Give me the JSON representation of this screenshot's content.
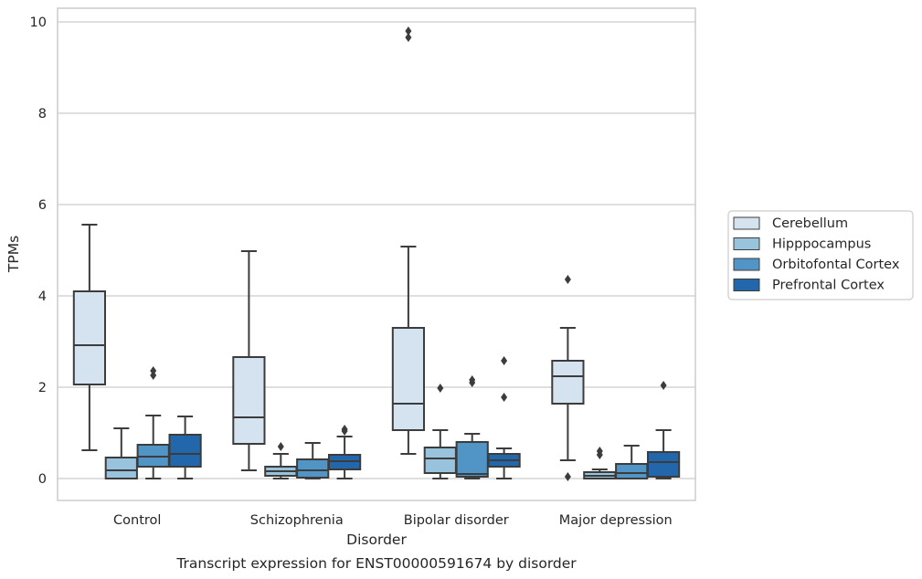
{
  "chart_data": {
    "type": "box",
    "title": "",
    "caption": "Transcript expression for ENST00000591674 by disorder",
    "xlabel": "Disorder",
    "ylabel": "TPMs",
    "ylim": [
      -0.47,
      10.3
    ],
    "yticks": [
      0,
      2,
      4,
      6,
      8,
      10
    ],
    "grid": "horizontal",
    "legend_position": "right",
    "categories": [
      "Control",
      "Schizophrenia",
      "Bipolar disorder",
      "Major depression"
    ],
    "series": [
      {
        "name": "Cerebellum",
        "color": "#d5e3f1",
        "boxes": [
          {
            "whisker_low": 0.62,
            "q1": 2.06,
            "median": 2.92,
            "q3": 4.1,
            "whisker_high": 5.56,
            "outliers": []
          },
          {
            "whisker_low": 0.18,
            "q1": 0.76,
            "median": 1.34,
            "q3": 2.66,
            "whisker_high": 4.98,
            "outliers": []
          },
          {
            "whisker_low": 0.54,
            "q1": 1.06,
            "median": 1.64,
            "q3": 3.3,
            "whisker_high": 5.08,
            "outliers": [
              9.66,
              9.8
            ]
          },
          {
            "whisker_low": 0.4,
            "q1": 1.64,
            "median": 2.24,
            "q3": 2.58,
            "whisker_high": 3.3,
            "outliers": [
              0.04,
              4.36
            ]
          }
        ]
      },
      {
        "name": "Hipppocampus",
        "color": "#99c2dd",
        "boxes": [
          {
            "whisker_low": 0.0,
            "q1": 0.0,
            "median": 0.18,
            "q3": 0.46,
            "whisker_high": 1.1,
            "outliers": []
          },
          {
            "whisker_low": 0.0,
            "q1": 0.06,
            "median": 0.16,
            "q3": 0.26,
            "whisker_high": 0.54,
            "outliers": [
              0.7
            ]
          },
          {
            "whisker_low": 0.0,
            "q1": 0.12,
            "median": 0.44,
            "q3": 0.68,
            "whisker_high": 1.06,
            "outliers": [
              1.98
            ]
          },
          {
            "whisker_low": 0.0,
            "q1": 0.0,
            "median": 0.06,
            "q3": 0.14,
            "whisker_high": 0.2,
            "outliers": [
              0.52,
              0.6
            ]
          }
        ]
      },
      {
        "name": "Orbitofontal Cortex",
        "color": "#5195c6",
        "boxes": [
          {
            "whisker_low": 0.0,
            "q1": 0.26,
            "median": 0.48,
            "q3": 0.74,
            "whisker_high": 1.38,
            "outliers": [
              2.26,
              2.36
            ]
          },
          {
            "whisker_low": 0.0,
            "q1": 0.02,
            "median": 0.18,
            "q3": 0.42,
            "whisker_high": 0.78,
            "outliers": []
          },
          {
            "whisker_low": 0.0,
            "q1": 0.04,
            "median": 0.1,
            "q3": 0.8,
            "whisker_high": 0.98,
            "outliers": [
              2.1,
              2.16
            ]
          },
          {
            "whisker_low": 0.0,
            "q1": 0.0,
            "median": 0.12,
            "q3": 0.32,
            "whisker_high": 0.72,
            "outliers": []
          }
        ]
      },
      {
        "name": "Prefrontal Cortex",
        "color": "#2266ab",
        "boxes": [
          {
            "whisker_low": 0.0,
            "q1": 0.26,
            "median": 0.54,
            "q3": 0.96,
            "whisker_high": 1.36,
            "outliers": []
          },
          {
            "whisker_low": 0.0,
            "q1": 0.2,
            "median": 0.38,
            "q3": 0.52,
            "whisker_high": 0.92,
            "outliers": [
              1.04,
              1.08
            ]
          },
          {
            "whisker_low": 0.0,
            "q1": 0.26,
            "median": 0.4,
            "q3": 0.54,
            "whisker_high": 0.66,
            "outliers": [
              1.78,
              2.58
            ]
          },
          {
            "whisker_low": 0.0,
            "q1": 0.04,
            "median": 0.36,
            "q3": 0.58,
            "whisker_high": 1.06,
            "outliers": [
              2.04
            ]
          }
        ]
      }
    ]
  }
}
